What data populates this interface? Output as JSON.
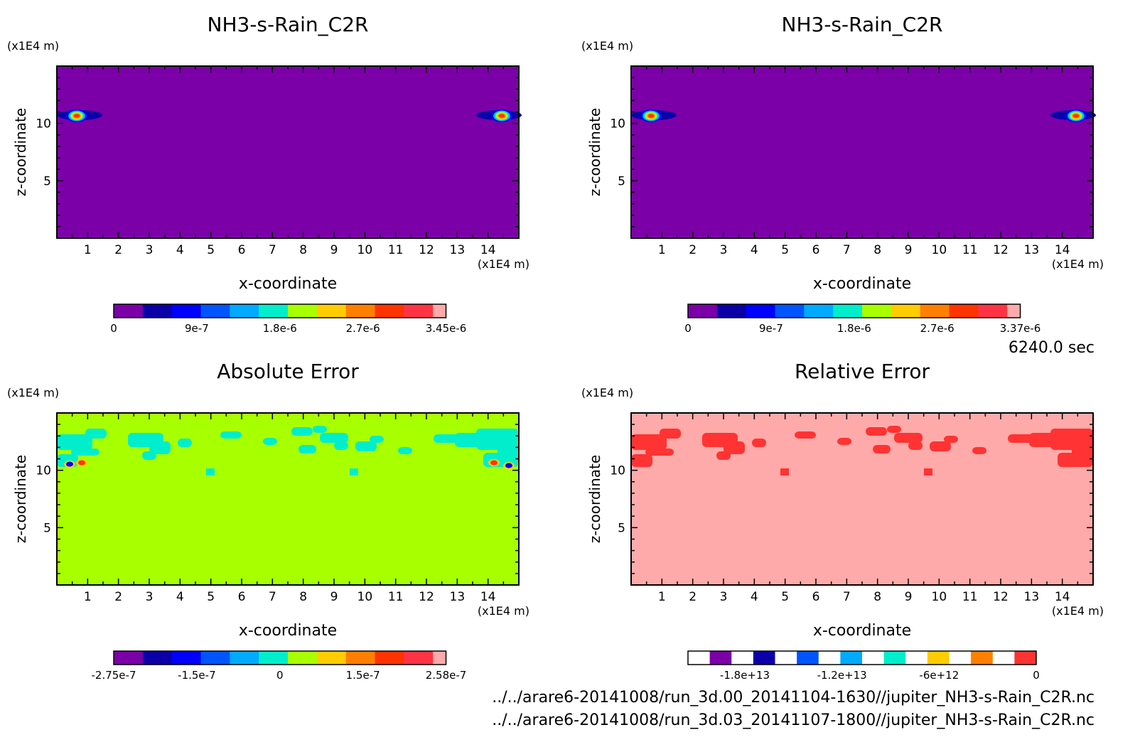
{
  "time_label": "6240.0 sec",
  "files": [
    "../../arare6-20141008/run_3d.00_20141104-1630//jupiter_NH3-s-Rain_C2R.nc",
    "../../arare6-20141008/run_3d.03_20141107-1800//jupiter_NH3-s-Rain_C2R.nc"
  ],
  "chart_data": [
    {
      "type": "heatmap",
      "title": "NH3-s-Rain_C2R",
      "xlabel": "x-coordinate",
      "ylabel": "z-coordinate",
      "xunit": "(x1E4 m)",
      "yunit": "(x1E4 m)",
      "xlim": [
        0,
        15
      ],
      "ylim": [
        0,
        15
      ],
      "xticks": [
        "1",
        "2",
        "3",
        "4",
        "5",
        "6",
        "7",
        "8",
        "9",
        "10",
        "11",
        "12",
        "13",
        "14"
      ],
      "yticks": [
        "5",
        "10"
      ],
      "background": "#7b00a8",
      "colorbar": {
        "colors": [
          "#7b00a8",
          "#0b00a8",
          "#0000ff",
          "#0055ff",
          "#00aaff",
          "#00eecc",
          "#a8ff00",
          "#ffcc00",
          "#ff7f00",
          "#ff3300",
          "#ff3344",
          "#ffaaaa"
        ],
        "tick_labels": [
          "0",
          "9e-7",
          "1.8e-6",
          "2.7e-6",
          "3.45e-6"
        ]
      }
    },
    {
      "type": "heatmap",
      "title": "NH3-s-Rain_C2R",
      "xlabel": "x-coordinate",
      "ylabel": "z-coordinate",
      "xunit": "(x1E4 m)",
      "yunit": "(x1E4 m)",
      "xlim": [
        0,
        15
      ],
      "ylim": [
        0,
        15
      ],
      "xticks": [
        "1",
        "2",
        "3",
        "4",
        "5",
        "6",
        "7",
        "8",
        "9",
        "10",
        "11",
        "12",
        "13",
        "14"
      ],
      "yticks": [
        "5",
        "10"
      ],
      "background": "#7b00a8",
      "colorbar": {
        "colors": [
          "#7b00a8",
          "#0b00a8",
          "#0000ff",
          "#0055ff",
          "#00aaff",
          "#00eecc",
          "#a8ff00",
          "#ffcc00",
          "#ff7f00",
          "#ff3300",
          "#ff3344",
          "#ffaaaa"
        ],
        "tick_labels": [
          "0",
          "9e-7",
          "1.8e-6",
          "2.7e-6",
          "3.37e-6"
        ]
      }
    },
    {
      "type": "heatmap",
      "title": "Absolute Error",
      "xlabel": "x-coordinate",
      "ylabel": "z-coordinate",
      "xunit": "(x1E4 m)",
      "yunit": "(x1E4 m)",
      "xlim": [
        0,
        15
      ],
      "ylim": [
        0,
        15
      ],
      "xticks": [
        "1",
        "2",
        "3",
        "4",
        "5",
        "6",
        "7",
        "8",
        "9",
        "10",
        "11",
        "12",
        "13",
        "14"
      ],
      "yticks": [
        "5",
        "10"
      ],
      "background": "#a8ff00",
      "patch_color": "#00eecc",
      "colorbar": {
        "colors": [
          "#7b00a8",
          "#0b00a8",
          "#0000ff",
          "#0055ff",
          "#00aaff",
          "#00eecc",
          "#a8ff00",
          "#ffcc00",
          "#ff7f00",
          "#ff3300",
          "#ff3344",
          "#ffaaaa"
        ],
        "tick_labels": [
          "-2.75e-7",
          "-1.5e-7",
          "0",
          "1.5e-7",
          "2.58e-7"
        ]
      }
    },
    {
      "type": "heatmap",
      "title": "Relative Error",
      "xlabel": "x-coordinate",
      "ylabel": "z-coordinate",
      "xunit": "(x1E4 m)",
      "yunit": "(x1E4 m)",
      "xlim": [
        0,
        15
      ],
      "ylim": [
        0,
        15
      ],
      "xticks": [
        "1",
        "2",
        "3",
        "4",
        "5",
        "6",
        "7",
        "8",
        "9",
        "10",
        "11",
        "12",
        "13",
        "14"
      ],
      "yticks": [
        "5",
        "10"
      ],
      "background": "#ffaaaa",
      "patch_color": "#ff3333",
      "colorbar": {
        "colors": [
          "#ffffff",
          "#7b00a8",
          "#ffffff",
          "#0b00a8",
          "#ffffff",
          "#0055ff",
          "#ffffff",
          "#00aaff",
          "#ffffff",
          "#00eecc",
          "#ffffff",
          "#ffcc00",
          "#ffffff",
          "#ff7f00",
          "#ffffff",
          "#ff3333"
        ],
        "tick_labels": [
          "-1.8e+13",
          "-1.2e+13",
          "-6e+12",
          "0"
        ]
      }
    }
  ]
}
